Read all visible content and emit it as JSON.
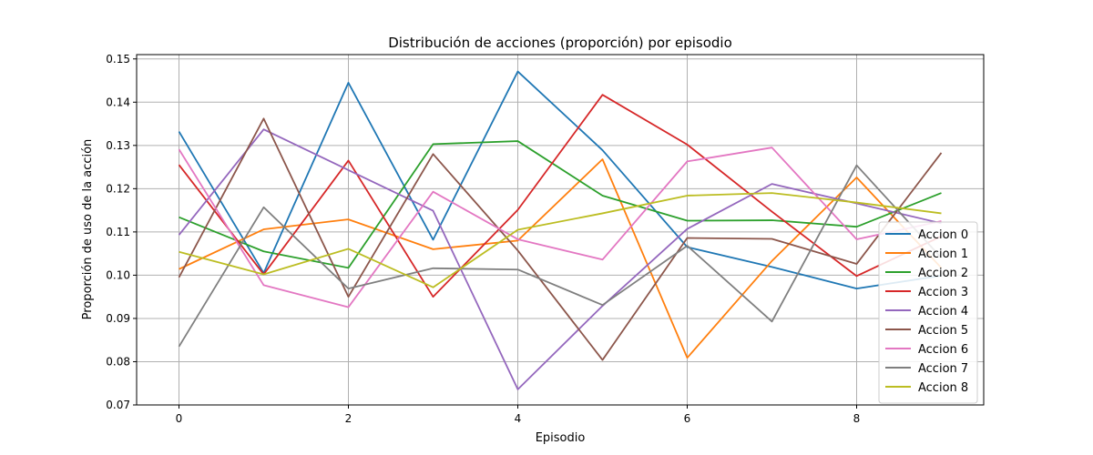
{
  "chart_data": {
    "type": "line",
    "title": "Distribución de acciones (proporción) por episodio",
    "xlabel": "Episodio",
    "ylabel": "Proporción de uso de la acción",
    "xlim": [
      -0.5,
      9.5
    ],
    "ylim": [
      0.07,
      0.151
    ],
    "xticks": [
      0,
      2,
      4,
      6,
      8
    ],
    "yticks": [
      0.07,
      0.08,
      0.09,
      0.1,
      0.11,
      0.12,
      0.13,
      0.14,
      0.15
    ],
    "ytick_labels": [
      "0.07",
      "0.08",
      "0.09",
      "0.10",
      "0.11",
      "0.12",
      "0.13",
      "0.14",
      "0.15"
    ],
    "grid": true,
    "legend_position": "right",
    "x": [
      0,
      1,
      2,
      3,
      4,
      5,
      6,
      7,
      8,
      9
    ],
    "series": [
      {
        "name": "Accion 0",
        "color": "#1f77b4",
        "values": [
          0.1332,
          0.1005,
          0.1445,
          0.1082,
          0.1471,
          0.1289,
          0.1065,
          0.1019,
          0.0969,
          0.0999
        ]
      },
      {
        "name": "Accion 1",
        "color": "#ff7f0e",
        "values": [
          0.1014,
          0.1106,
          0.1129,
          0.106,
          0.108,
          0.1268,
          0.0809,
          0.1033,
          0.1226,
          0.1017
        ]
      },
      {
        "name": "Accion 2",
        "color": "#2ca02c",
        "values": [
          0.1134,
          0.1055,
          0.1017,
          0.1303,
          0.131,
          0.1184,
          0.1126,
          0.1127,
          0.1112,
          0.119
        ]
      },
      {
        "name": "Accion 3",
        "color": "#d62728",
        "values": [
          0.1255,
          0.1002,
          0.1265,
          0.095,
          0.1151,
          0.1417,
          0.1302,
          0.1147,
          0.0998,
          0.109
        ]
      },
      {
        "name": "Accion 4",
        "color": "#9467bd",
        "values": [
          0.1093,
          0.1337,
          0.1243,
          0.1149,
          0.0736,
          0.0929,
          0.1107,
          0.1211,
          0.1166,
          0.112
        ]
      },
      {
        "name": "Accion 5",
        "color": "#8c564b",
        "values": [
          0.0995,
          0.1362,
          0.095,
          0.128,
          0.1057,
          0.0804,
          0.1086,
          0.1084,
          0.1026,
          0.1283
        ]
      },
      {
        "name": "Accion 6",
        "color": "#e377c2",
        "values": [
          0.1291,
          0.0977,
          0.0926,
          0.1193,
          0.1083,
          0.1036,
          0.1263,
          0.1295,
          0.1083,
          0.1125
        ]
      },
      {
        "name": "Accion 7",
        "color": "#7f7f7f",
        "values": [
          0.0835,
          0.1157,
          0.0969,
          0.1016,
          0.1013,
          0.0931,
          0.1068,
          0.0893,
          0.1254,
          0.104
        ]
      },
      {
        "name": "Accion 8",
        "color": "#bcbd22",
        "values": [
          0.1054,
          0.1002,
          0.1061,
          0.0972,
          0.1105,
          0.1143,
          0.1184,
          0.119,
          0.1168,
          0.1143
        ]
      }
    ]
  }
}
